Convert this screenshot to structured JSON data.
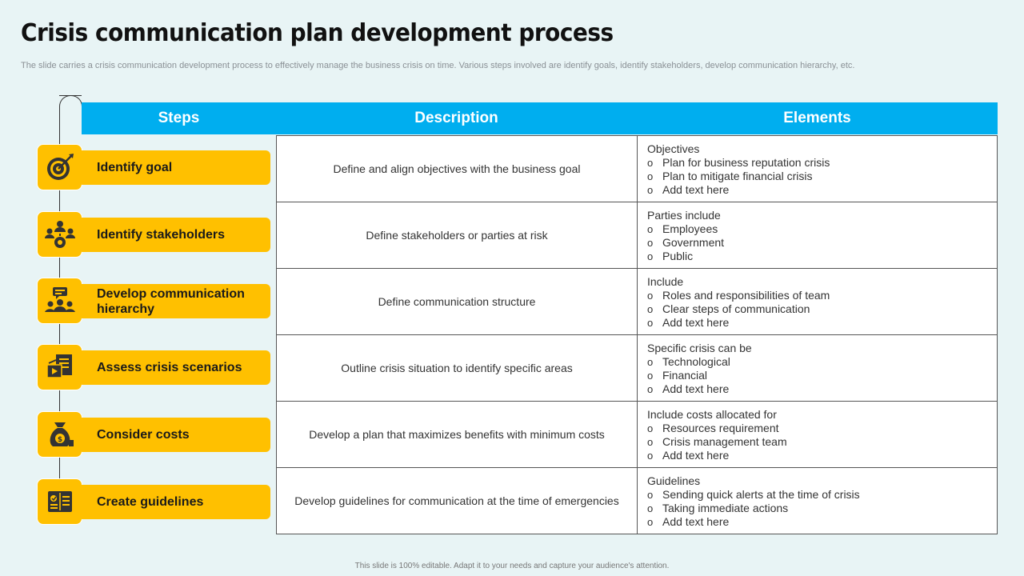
{
  "title": "Crisis communication plan development process",
  "subtitle": "The slide carries a crisis communication development process to effectively manage the business crisis on time. Various steps involved are identify goals, identify stakeholders, develop communication hierarchy, etc.",
  "header": {
    "steps": "Steps",
    "description": "Description",
    "elements": "Elements"
  },
  "rows": [
    {
      "step": "Identify goal",
      "icon": "target-icon",
      "description": "Define and align objectives with the business goal",
      "elements_title": "Objectives",
      "elements": [
        "Plan for business reputation crisis",
        "Plan to mitigate financial crisis",
        "Add text here"
      ]
    },
    {
      "step": "Identify stakeholders",
      "icon": "stakeholders-icon",
      "description": "Define stakeholders or parties at risk",
      "elements_title": "Parties include",
      "elements": [
        "Employees",
        "Government",
        "Public"
      ]
    },
    {
      "step": "Develop communication hierarchy",
      "icon": "team-communication-icon",
      "description": "Define communication structure",
      "elements_title": "Include",
      "elements": [
        "Roles and responsibilities of team",
        "Clear steps of communication",
        "Add text here"
      ]
    },
    {
      "step": "Assess crisis scenarios",
      "icon": "presentation-icon",
      "description": "Outline crisis situation to identify specific areas",
      "elements_title": "Specific crisis can be",
      "elements": [
        "Technological",
        "Financial",
        "Add text here"
      ]
    },
    {
      "step": "Consider costs",
      "icon": "money-bag-icon",
      "description": "Develop a plan that maximizes  benefits with minimum costs",
      "elements_title": "Include costs allocated for",
      "elements": [
        "Resources requirement",
        "Crisis management team",
        "Add text here"
      ]
    },
    {
      "step": "Create guidelines",
      "icon": "guidelines-book-icon",
      "description": "Develop guidelines for communication at the time of emergencies",
      "elements_title": "Guidelines",
      "elements": [
        "Sending quick alerts at the time of crisis",
        "Taking immediate actions",
        "Add text here"
      ]
    }
  ],
  "footer": "This slide is 100% editable.  Adapt it to your needs and capture your audience's attention.",
  "colors": {
    "accent_blue": "#00aeef",
    "step_yellow": "#ffc000",
    "background": "#e8f4f5"
  }
}
